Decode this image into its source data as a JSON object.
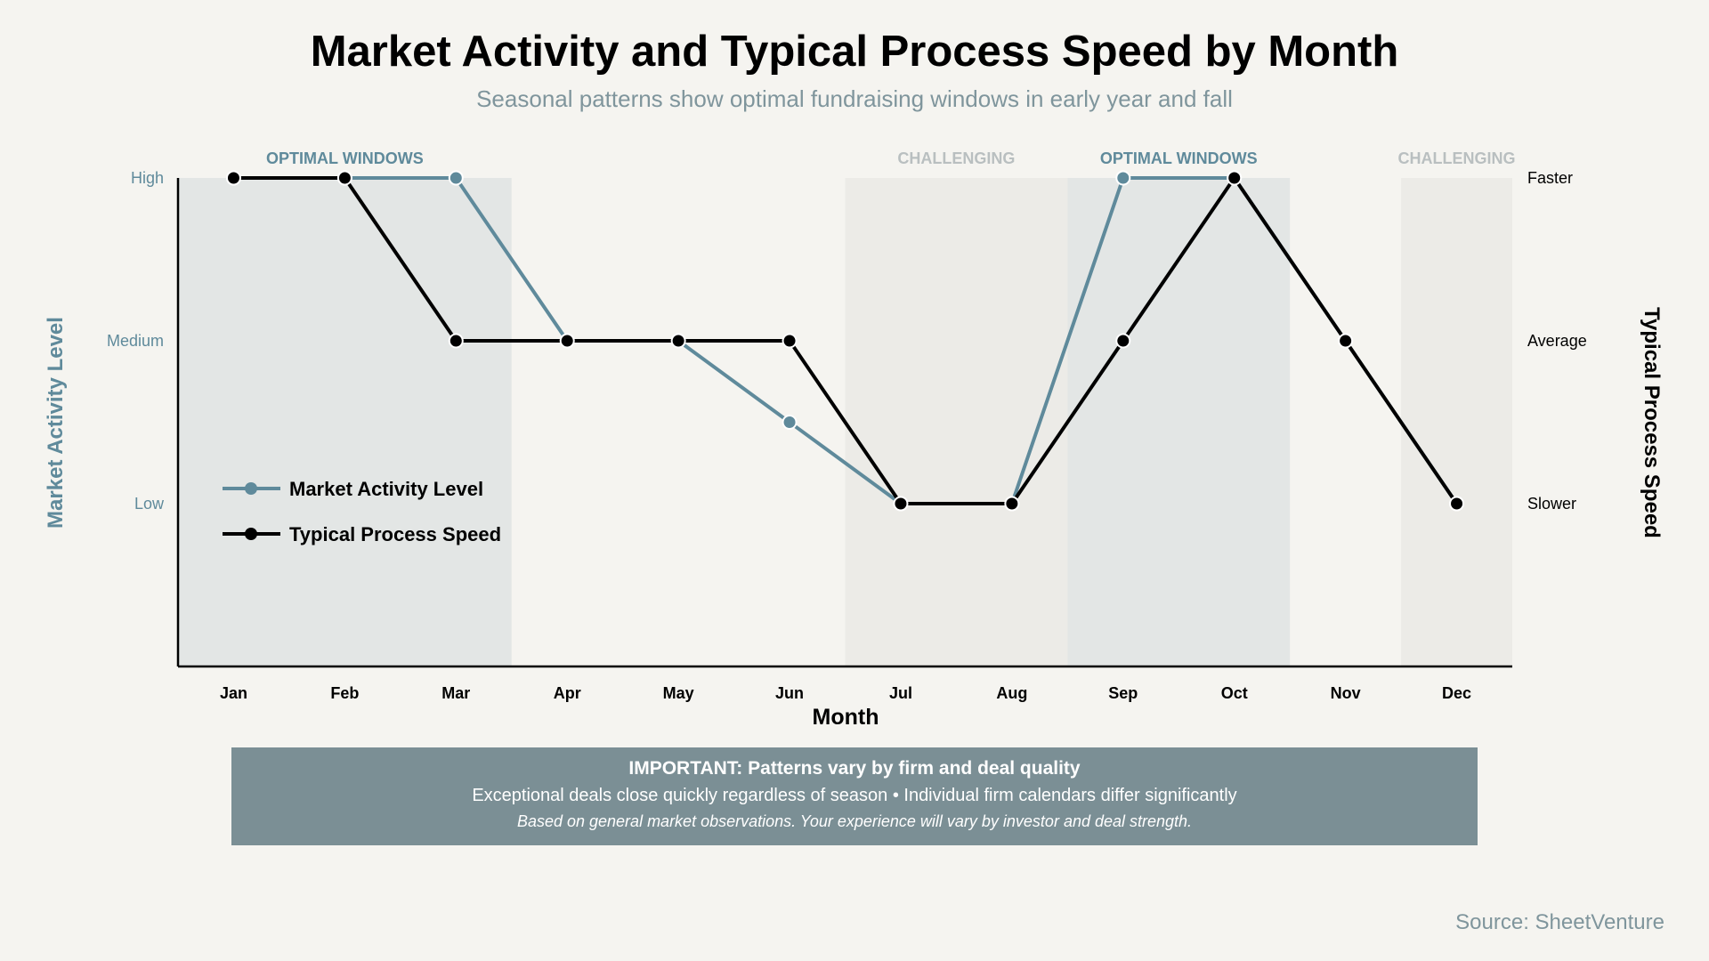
{
  "title": "Market Activity and Typical Process Speed by Month",
  "subtitle": "Seasonal patterns show optimal fundraising windows in early year and fall",
  "source": "Source: SheetVenture",
  "note": {
    "heading": "IMPORTANT: Patterns vary by firm and deal quality",
    "line1": "Exceptional deals close quickly regardless of season • Individual firm calendars differ significantly",
    "line2": "Based on general market observations. Your experience will vary by investor and deal strength."
  },
  "colors": {
    "market": "#5f8a9b",
    "speed": "#000000",
    "optimal_band": "#e3e6e5",
    "challenging_band": "#ecebe7",
    "optimal_label": "#5f8a9b",
    "challenging_label": "#b9bfc0",
    "note_box": "#7b8f95"
  },
  "chart_data": {
    "type": "line",
    "categories": [
      "Jan",
      "Feb",
      "Mar",
      "Apr",
      "May",
      "Jun",
      "Jul",
      "Aug",
      "Sep",
      "Oct",
      "Nov",
      "Dec"
    ],
    "xlabel": "Month",
    "ylabel_left": "Market Activity Level",
    "ylabel_right": "Typical Process Speed",
    "ylim": [
      0,
      3
    ],
    "left_ticks": [
      {
        "value": 1,
        "label": "Low"
      },
      {
        "value": 2,
        "label": "Medium"
      },
      {
        "value": 3,
        "label": "High"
      }
    ],
    "right_ticks": [
      {
        "value": 1,
        "label": "Slower"
      },
      {
        "value": 2,
        "label": "Average"
      },
      {
        "value": 3,
        "label": "Faster"
      }
    ],
    "series": [
      {
        "name": "Market Activity Level",
        "values": [
          3,
          3,
          3,
          2,
          2,
          1.5,
          1,
          1,
          3,
          3,
          2,
          1
        ]
      },
      {
        "name": "Typical Process Speed",
        "values": [
          3,
          3,
          2,
          2,
          2,
          2,
          1,
          1,
          2,
          3,
          2,
          1
        ]
      }
    ],
    "bands": [
      {
        "label": "OPTIMAL WINDOWS",
        "kind": "optimal",
        "from": "Jan",
        "to": "Mar"
      },
      {
        "label": "CHALLENGING",
        "kind": "challenging",
        "from": "Jul",
        "to": "Aug"
      },
      {
        "label": "OPTIMAL WINDOWS",
        "kind": "optimal",
        "from": "Sep",
        "to": "Oct"
      },
      {
        "label": "CHALLENGING",
        "kind": "challenging",
        "from": "Dec",
        "to": "Dec"
      }
    ],
    "legend_position": "lower-left",
    "grid": false
  }
}
